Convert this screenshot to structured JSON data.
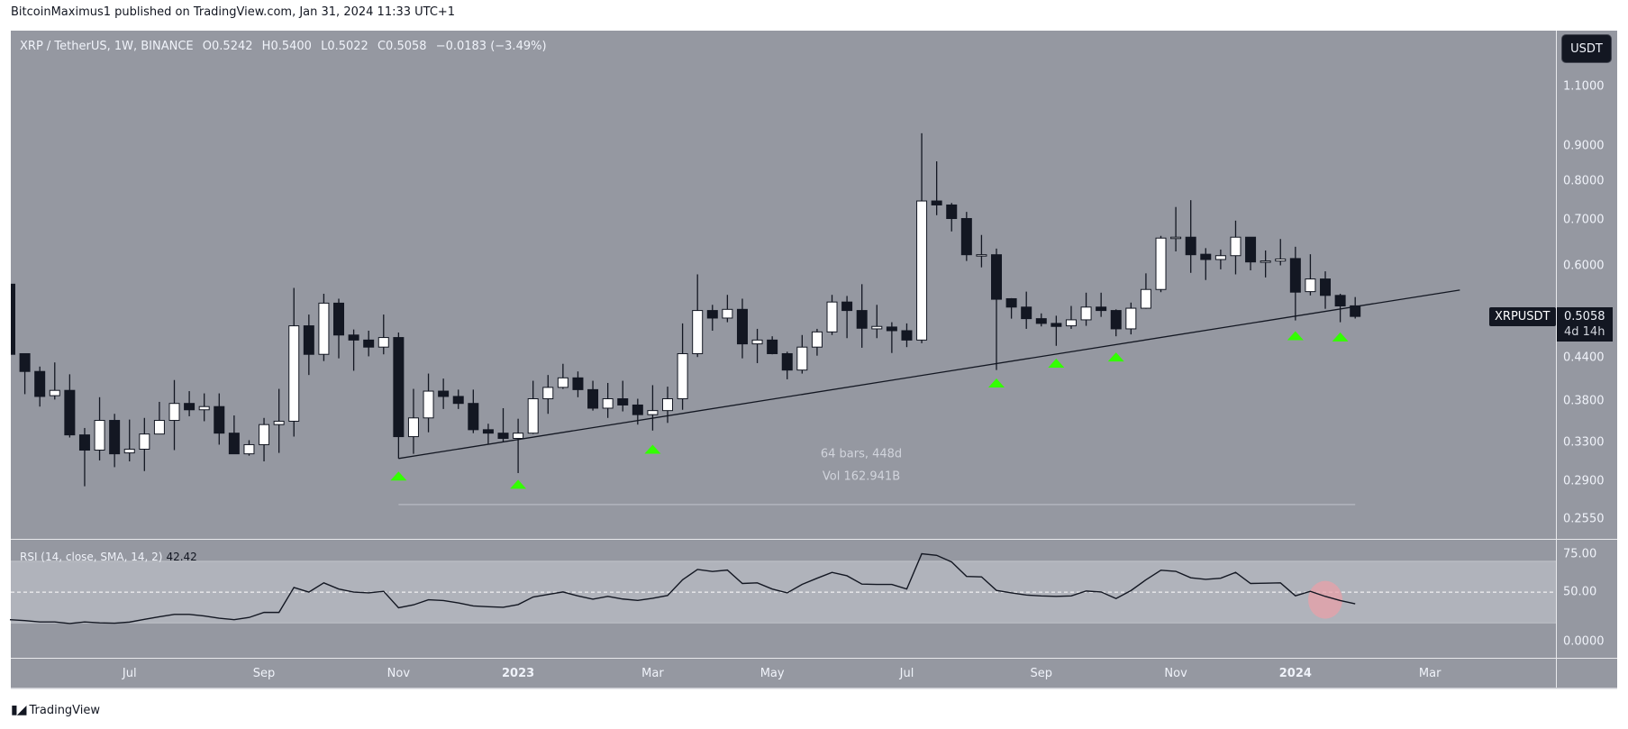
{
  "publisher_line": "BitcoinMaximus1 published on TradingView.com, Jan 31, 2024 11:33 UTC+1",
  "legend": {
    "symbol": "XRP / TetherUS, 1W, BINANCE",
    "o_key": "O",
    "o": "0.5242",
    "h_key": "H",
    "h": "0.5400",
    "l_key": "L",
    "l": "0.5022",
    "c_key": "C",
    "c": "0.5058",
    "change": "−0.0183 (−3.49%)"
  },
  "currency_button": "USDT",
  "price_axis_labels": [
    "1.1000",
    "0.9000",
    "0.8000",
    "0.7000",
    "0.6000",
    "0.4400",
    "0.3800",
    "0.3300",
    "0.2900",
    "0.2550"
  ],
  "last_price": {
    "symbol": "XRPUSDT",
    "price": "0.5058",
    "countdown": "4d 14h"
  },
  "date_range_tool": {
    "bars_text": "64 bars, 448d",
    "vol_text": "Vol 162.941B",
    "from": "2022-11-07",
    "to": "2024-01-29",
    "price": 0.268
  },
  "rsi": {
    "label": "RSI (14, close, SMA, 14, 2)",
    "value": "42.42",
    "axis_labels": [
      "75.00",
      "50.00",
      "0.0000"
    ],
    "band": [
      30,
      70
    ],
    "midline": 50,
    "ylim": [
      7.3,
      84
    ],
    "values": [
      32.1,
      31.5,
      30.6,
      30.6,
      29.6,
      30.6,
      30,
      29.8,
      30.5,
      32.3,
      34,
      35.5,
      35.5,
      34.5,
      33,
      32.1,
      33.5,
      36.8,
      36.8,
      53,
      50,
      56,
      52,
      50,
      49.5,
      50.5,
      39.8,
      41.7,
      45,
      44.5,
      43,
      41,
      40.5,
      40.1,
      41.9,
      46.8,
      48.5,
      50.1,
      47.5,
      45.4,
      47.2,
      45.5,
      44.6,
      46,
      47.8,
      58,
      64.7,
      63.4,
      64.3,
      55.6,
      56,
      52,
      49.5,
      55,
      59,
      62.8,
      60.6,
      55.2,
      55,
      55,
      52,
      74.9,
      73.9,
      69.6,
      60.2,
      59.9,
      51.1,
      49.5,
      48.1,
      47.5,
      47.2,
      47.5,
      50.7,
      50.1,
      45.8,
      51,
      58,
      64.2,
      63.5,
      59.3,
      58.3,
      59,
      62.8,
      55.6,
      55.8,
      56,
      47.6,
      50.5,
      47.2,
      44.5,
      42.42
    ],
    "highlight": {
      "date": "2024-01-15",
      "value": 45,
      "color": "#e8a0a8"
    }
  },
  "x_axis_ticks": [
    {
      "label": "Jul",
      "date": "2022-07-04"
    },
    {
      "label": "Sep",
      "date": "2022-09-05"
    },
    {
      "label": "Nov",
      "date": "2022-11-07"
    },
    {
      "label": "2023",
      "date": "2023-01-02",
      "year": true
    },
    {
      "label": "Mar",
      "date": "2023-03-06"
    },
    {
      "label": "May",
      "date": "2023-05-01"
    },
    {
      "label": "Jul",
      "date": "2023-07-03"
    },
    {
      "label": "Sep",
      "date": "2023-09-04"
    },
    {
      "label": "Nov",
      "date": "2023-11-06"
    },
    {
      "label": "2024",
      "date": "2024-01-01",
      "year": true
    },
    {
      "label": "Mar",
      "date": "2024-03-04"
    }
  ],
  "footer": {
    "logo_mark": "17",
    "brand": "TradingView"
  },
  "colors": {
    "pane": "#9598a1",
    "rsi_band": "#b0b3bb",
    "bear": "#131722",
    "bull": "#ffffff",
    "marker": "#33ff00",
    "trendline": "#131722"
  },
  "chart_data": {
    "type": "candlestick",
    "interval": "1W",
    "yscale": "log",
    "ylim": [
      0.2386,
      1.328
    ],
    "xlim": [
      "2022-05-09",
      "2024-05-02"
    ],
    "grid": false,
    "columns": [
      "date",
      "open",
      "high",
      "low",
      "close"
    ],
    "candles": [
      [
        "2022-05-09",
        0.564,
        0.564,
        0.445,
        0.445
      ],
      [
        "2022-05-16",
        0.446,
        0.446,
        0.389,
        0.42
      ],
      [
        "2022-05-23",
        0.42,
        0.427,
        0.373,
        0.386
      ],
      [
        "2022-05-30",
        0.387,
        0.433,
        0.382,
        0.394
      ],
      [
        "2022-06-06",
        0.394,
        0.416,
        0.336,
        0.339
      ],
      [
        "2022-06-13",
        0.339,
        0.347,
        0.285,
        0.322
      ],
      [
        "2022-06-20",
        0.322,
        0.385,
        0.311,
        0.356
      ],
      [
        "2022-06-27",
        0.356,
        0.364,
        0.304,
        0.318
      ],
      [
        "2022-07-04",
        0.319,
        0.357,
        0.31,
        0.323
      ],
      [
        "2022-07-11",
        0.323,
        0.359,
        0.3,
        0.34
      ],
      [
        "2022-07-18",
        0.34,
        0.379,
        0.34,
        0.356
      ],
      [
        "2022-07-25",
        0.356,
        0.408,
        0.322,
        0.377
      ],
      [
        "2022-08-01",
        0.377,
        0.393,
        0.361,
        0.369
      ],
      [
        "2022-08-08",
        0.369,
        0.39,
        0.355,
        0.373
      ],
      [
        "2022-08-15",
        0.373,
        0.39,
        0.328,
        0.341
      ],
      [
        "2022-08-22",
        0.341,
        0.362,
        0.318,
        0.318
      ],
      [
        "2022-08-29",
        0.318,
        0.333,
        0.316,
        0.328
      ],
      [
        "2022-09-05",
        0.328,
        0.359,
        0.31,
        0.351
      ],
      [
        "2022-09-12",
        0.351,
        0.396,
        0.319,
        0.355
      ],
      [
        "2022-09-19",
        0.355,
        0.557,
        0.337,
        0.49
      ],
      [
        "2022-09-26",
        0.49,
        0.509,
        0.415,
        0.445
      ],
      [
        "2022-10-03",
        0.445,
        0.546,
        0.435,
        0.529
      ],
      [
        "2022-10-10",
        0.529,
        0.537,
        0.439,
        0.475
      ],
      [
        "2022-10-17",
        0.475,
        0.484,
        0.421,
        0.467
      ],
      [
        "2022-10-24",
        0.467,
        0.482,
        0.442,
        0.456
      ],
      [
        "2022-10-31",
        0.456,
        0.509,
        0.445,
        0.471
      ],
      [
        "2022-11-07",
        0.471,
        0.479,
        0.313,
        0.337
      ],
      [
        "2022-11-14",
        0.337,
        0.396,
        0.318,
        0.359
      ],
      [
        "2022-11-21",
        0.359,
        0.417,
        0.342,
        0.393
      ],
      [
        "2022-11-28",
        0.393,
        0.41,
        0.37,
        0.386
      ],
      [
        "2022-12-05",
        0.386,
        0.395,
        0.37,
        0.377
      ],
      [
        "2022-12-12",
        0.377,
        0.395,
        0.341,
        0.345
      ],
      [
        "2022-12-19",
        0.345,
        0.352,
        0.329,
        0.341
      ],
      [
        "2022-12-26",
        0.341,
        0.371,
        0.331,
        0.335
      ],
      [
        "2023-01-02",
        0.335,
        0.358,
        0.298,
        0.341
      ],
      [
        "2023-01-09",
        0.341,
        0.407,
        0.34,
        0.383
      ],
      [
        "2023-01-16",
        0.383,
        0.415,
        0.364,
        0.398
      ],
      [
        "2023-01-23",
        0.398,
        0.431,
        0.396,
        0.411
      ],
      [
        "2023-01-30",
        0.411,
        0.42,
        0.385,
        0.395
      ],
      [
        "2023-02-06",
        0.395,
        0.407,
        0.368,
        0.371
      ],
      [
        "2023-02-13",
        0.371,
        0.404,
        0.359,
        0.383
      ],
      [
        "2023-02-20",
        0.383,
        0.407,
        0.367,
        0.375
      ],
      [
        "2023-02-27",
        0.375,
        0.383,
        0.351,
        0.363
      ],
      [
        "2023-03-06",
        0.363,
        0.401,
        0.344,
        0.368
      ],
      [
        "2023-03-13",
        0.368,
        0.399,
        0.353,
        0.383
      ],
      [
        "2023-03-20",
        0.383,
        0.494,
        0.369,
        0.446
      ],
      [
        "2023-03-27",
        0.446,
        0.583,
        0.441,
        0.516
      ],
      [
        "2023-04-03",
        0.516,
        0.526,
        0.482,
        0.503
      ],
      [
        "2023-04-10",
        0.503,
        0.544,
        0.496,
        0.518
      ],
      [
        "2023-04-17",
        0.518,
        0.537,
        0.439,
        0.461
      ],
      [
        "2023-04-24",
        0.461,
        0.485,
        0.432,
        0.467
      ],
      [
        "2023-05-01",
        0.467,
        0.473,
        0.445,
        0.446
      ],
      [
        "2023-05-08",
        0.446,
        0.449,
        0.409,
        0.422
      ],
      [
        "2023-05-15",
        0.422,
        0.475,
        0.417,
        0.456
      ],
      [
        "2023-05-22",
        0.456,
        0.485,
        0.443,
        0.48
      ],
      [
        "2023-05-29",
        0.48,
        0.544,
        0.475,
        0.531
      ],
      [
        "2023-06-05",
        0.531,
        0.542,
        0.47,
        0.516
      ],
      [
        "2023-06-12",
        0.516,
        0.564,
        0.455,
        0.486
      ],
      [
        "2023-06-19",
        0.485,
        0.526,
        0.47,
        0.489
      ],
      [
        "2023-06-26",
        0.488,
        0.496,
        0.447,
        0.482
      ],
      [
        "2023-07-03",
        0.482,
        0.494,
        0.456,
        0.467
      ],
      [
        "2023-07-10",
        0.467,
        0.939,
        0.462,
        0.747
      ],
      [
        "2023-07-17",
        0.747,
        0.854,
        0.712,
        0.737
      ],
      [
        "2023-07-24",
        0.737,
        0.742,
        0.674,
        0.704
      ],
      [
        "2023-07-31",
        0.704,
        0.72,
        0.61,
        0.623
      ],
      [
        "2023-08-07",
        0.623,
        0.666,
        0.597,
        0.623
      ],
      [
        "2023-08-14",
        0.623,
        0.636,
        0.422,
        0.536
      ],
      [
        "2023-08-21",
        0.537,
        0.538,
        0.502,
        0.522
      ],
      [
        "2023-08-28",
        0.522,
        0.55,
        0.485,
        0.502
      ],
      [
        "2023-09-04",
        0.502,
        0.511,
        0.489,
        0.494
      ],
      [
        "2023-09-11",
        0.494,
        0.507,
        0.458,
        0.489
      ],
      [
        "2023-09-18",
        0.49,
        0.524,
        0.485,
        0.5
      ],
      [
        "2023-09-25",
        0.5,
        0.548,
        0.49,
        0.522
      ],
      [
        "2023-10-02",
        0.522,
        0.548,
        0.505,
        0.516
      ],
      [
        "2023-10-09",
        0.516,
        0.518,
        0.473,
        0.485
      ],
      [
        "2023-10-16",
        0.485,
        0.53,
        0.476,
        0.52
      ],
      [
        "2023-10-23",
        0.52,
        0.585,
        0.519,
        0.554
      ],
      [
        "2023-10-30",
        0.554,
        0.664,
        0.549,
        0.659
      ],
      [
        "2023-11-06",
        0.659,
        0.732,
        0.63,
        0.661
      ],
      [
        "2023-11-13",
        0.661,
        0.749,
        0.586,
        0.623
      ],
      [
        "2023-11-20",
        0.624,
        0.637,
        0.572,
        0.613
      ],
      [
        "2023-11-27",
        0.613,
        0.634,
        0.593,
        0.621
      ],
      [
        "2023-12-04",
        0.621,
        0.699,
        0.583,
        0.661
      ],
      [
        "2023-12-11",
        0.661,
        0.661,
        0.591,
        0.608
      ],
      [
        "2023-12-18",
        0.61,
        0.632,
        0.577,
        0.61
      ],
      [
        "2023-12-25",
        0.61,
        0.657,
        0.601,
        0.614
      ],
      [
        "2024-01-01",
        0.615,
        0.64,
        0.499,
        0.549
      ],
      [
        "2024-01-08",
        0.55,
        0.624,
        0.543,
        0.574
      ],
      [
        "2024-01-15",
        0.574,
        0.589,
        0.519,
        0.543
      ],
      [
        "2024-01-22",
        0.543,
        0.546,
        0.496,
        0.524
      ],
      [
        "2024-01-29",
        0.5242,
        0.54,
        0.5022,
        0.5058
      ]
    ],
    "trendline": {
      "from": {
        "date": "2022-11-07",
        "price": 0.313
      },
      "to": {
        "date": "2024-03-18",
        "price": 0.553
      }
    },
    "markers": [
      {
        "date": "2022-11-07",
        "price": 0.295
      },
      {
        "date": "2023-01-02",
        "price": 0.287
      },
      {
        "date": "2023-03-06",
        "price": 0.323
      },
      {
        "date": "2023-08-14",
        "price": 0.404
      },
      {
        "date": "2023-09-11",
        "price": 0.432
      },
      {
        "date": "2023-10-09",
        "price": 0.441
      },
      {
        "date": "2024-01-01",
        "price": 0.474
      },
      {
        "date": "2024-01-22",
        "price": 0.472
      }
    ]
  }
}
